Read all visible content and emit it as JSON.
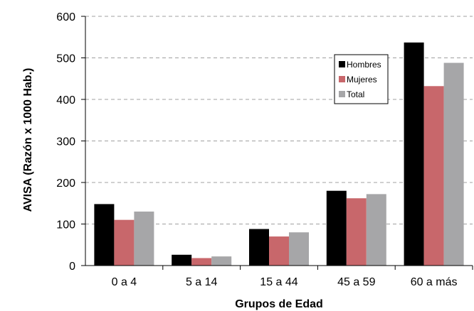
{
  "chart_data": {
    "type": "bar",
    "title": "",
    "xlabel": "Grupos de Edad",
    "ylabel": "AVISA (Razón x 1000 Hab.)",
    "ylim": [
      0,
      600
    ],
    "yticks": [
      0,
      100,
      200,
      300,
      400,
      500,
      600
    ],
    "grid": "horizontal-dashed",
    "legend_position": "top-right",
    "categories": [
      "0 a 4",
      "5 a 14",
      "15 a 44",
      "45 a 59",
      "60 a más"
    ],
    "series": [
      {
        "name": "Hombres",
        "color": "#000000",
        "values": [
          148,
          26,
          88,
          180,
          537
        ]
      },
      {
        "name": "Mujeres",
        "color": "#c8676b",
        "values": [
          110,
          18,
          70,
          162,
          432
        ]
      },
      {
        "name": "Total",
        "color": "#a6a6a8",
        "values": [
          130,
          22,
          80,
          172,
          488
        ]
      }
    ]
  }
}
